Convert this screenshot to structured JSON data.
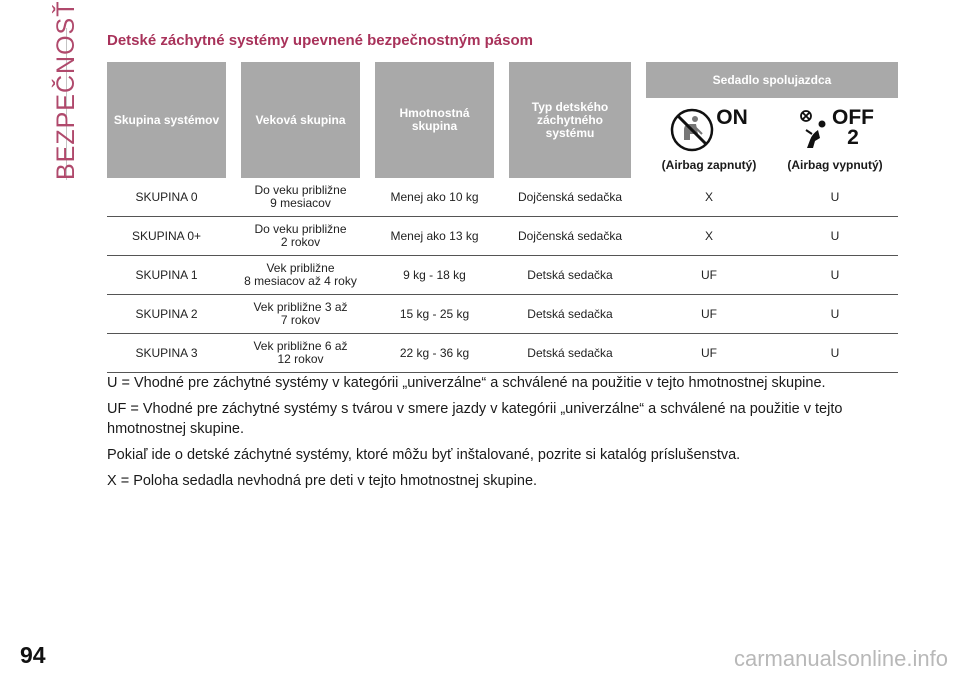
{
  "sidebar": {
    "section": "BEZPEČNOSŤ"
  },
  "title": "Detské záchytné systémy upevnené bezpečnostným pásom",
  "table": {
    "headers": {
      "group": "Skupina systémov",
      "age": "Veková skupina",
      "weight": "Hmotnostná skupina",
      "type": "Typ detského záchytného systému",
      "seat": "Sedadlo spolujazdca",
      "airbag_on_word": "ON",
      "airbag_on": "(Airbag zapnutý)",
      "airbag_off_word": "OFF",
      "airbag_off_num": "2",
      "airbag_off": "(Airbag vypnutý)"
    },
    "rows": [
      {
        "group": "SKUPINA 0",
        "age": "Do veku približne\n9 mesiacov",
        "weight": "Menej ako 10 kg",
        "type": "Dojčenská sedačka",
        "on": "X",
        "off": "U"
      },
      {
        "group": "SKUPINA 0+",
        "age": "Do veku približne\n2 rokov",
        "weight": "Menej ako 13 kg",
        "type": "Dojčenská sedačka",
        "on": "X",
        "off": "U"
      },
      {
        "group": "SKUPINA 1",
        "age": "Vek približne\n8 mesiacov až 4 roky",
        "weight": "9 kg - 18 kg",
        "type": "Detská sedačka",
        "on": "UF",
        "off": "U"
      },
      {
        "group": "SKUPINA 2",
        "age": "Vek približne 3 až\n7 rokov",
        "weight": "15 kg - 25 kg",
        "type": "Detská sedačka",
        "on": "UF",
        "off": "U"
      },
      {
        "group": "SKUPINA 3",
        "age": "Vek približne 6 až\n12 rokov",
        "weight": "22 kg - 36 kg",
        "type": "Detská sedačka",
        "on": "UF",
        "off": "U"
      }
    ]
  },
  "notes": [
    "U = Vhodné pre záchytné systémy v kategórii „univerzálne“ a schválené na použitie v tejto hmotnostnej skupine.",
    "UF = Vhodné pre záchytné systémy s tvárou v smere jazdy v kategórii „univerzálne“ a schválené na použitie v tejto hmotnostnej skupine.",
    "Pokiaľ ide o detské záchytné systémy, ktoré môžu byť inštalované, pozrite si katalóg príslušenstva.",
    "X = Poloha sedadla nevhodná pre deti v tejto hmotnostnej skupine."
  ],
  "page_number": "94",
  "footer_watermark": "carmanualsonline.info",
  "colors": {
    "accent": "#a8325a",
    "header_bg": "#a9a9a9"
  },
  "icons": [
    "airbag-on-icon",
    "airbag-off-icon"
  ]
}
